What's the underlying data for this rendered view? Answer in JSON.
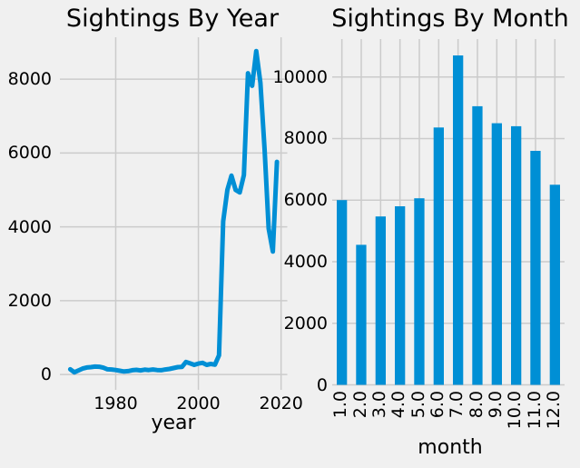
{
  "figure": {
    "background_color": "#f0f0f0",
    "grid_color": "#cbcbcb",
    "accent_color": "#008fd5",
    "text_color": "#000000"
  },
  "chart_data": [
    {
      "type": "line",
      "title": "Sightings By Year",
      "xlabel": "year",
      "ylabel": "",
      "x": [
        1969,
        1970,
        1971,
        1972,
        1973,
        1974,
        1975,
        1976,
        1977,
        1978,
        1979,
        1980,
        1981,
        1982,
        1983,
        1984,
        1985,
        1986,
        1987,
        1988,
        1989,
        1990,
        1991,
        1992,
        1993,
        1994,
        1995,
        1996,
        1997,
        1998,
        1999,
        2000,
        2001,
        2002,
        2003,
        2004,
        2005,
        2006,
        2007,
        2008,
        2009,
        2010,
        2011,
        2012,
        2013,
        2014,
        2015,
        2016,
        2017,
        2018,
        2019
      ],
      "y": [
        140,
        60,
        110,
        160,
        190,
        200,
        215,
        210,
        185,
        140,
        135,
        120,
        100,
        80,
        90,
        115,
        125,
        110,
        130,
        120,
        135,
        120,
        115,
        135,
        150,
        175,
        200,
        205,
        340,
        300,
        260,
        295,
        315,
        260,
        285,
        265,
        520,
        4150,
        5000,
        5385,
        5000,
        4930,
        5400,
        8160,
        7820,
        8760,
        7900,
        6100,
        3950,
        3330,
        5760
      ],
      "xticks": [
        1980,
        2000,
        2020
      ],
      "xtick_labels": [
        "1980",
        "2000",
        "2020"
      ],
      "yticks": [
        0,
        2000,
        4000,
        6000,
        8000
      ],
      "ytick_labels": [
        "0",
        "2000",
        "4000",
        "6000",
        "8000"
      ],
      "xlim": [
        1966.5,
        2021.5
      ],
      "ylim": [
        -416,
        9134
      ],
      "grid": true,
      "legend": false,
      "line_color": "#008fd5"
    },
    {
      "type": "bar",
      "title": "Sightings By Month",
      "xlabel": "month",
      "ylabel": "",
      "categories": [
        "1.0",
        "2.0",
        "3.0",
        "4.0",
        "5.0",
        "6.0",
        "7.0",
        "8.0",
        "9.0",
        "10.0",
        "11.0",
        "12.0"
      ],
      "values": [
        6000,
        4550,
        5470,
        5800,
        6060,
        8360,
        10700,
        9050,
        8500,
        8400,
        7600,
        6500
      ],
      "yticks": [
        0,
        2000,
        4000,
        6000,
        8000,
        10000
      ],
      "ytick_labels": [
        "0",
        "2000",
        "4000",
        "6000",
        "8000",
        "10000"
      ],
      "ylim": [
        0,
        11232
      ],
      "grid": true,
      "legend": false,
      "bar_color": "#008fd5"
    }
  ]
}
